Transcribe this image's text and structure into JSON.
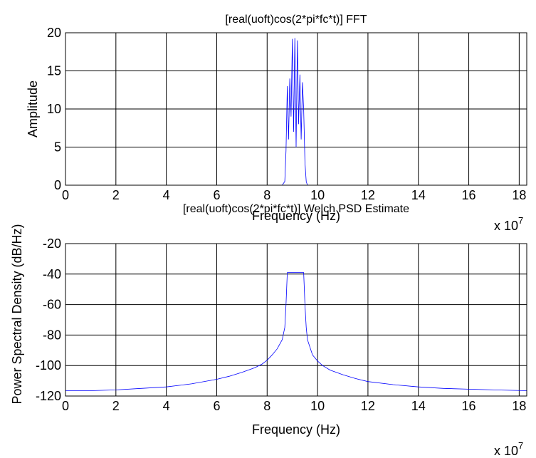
{
  "chart_data": [
    {
      "type": "line",
      "title": "[real(uoft)cos(2*pi*fc*t)] FFT",
      "xlabel": "Frequency (Hz)",
      "ylabel": "Amplitude",
      "x_exponent_label": "x 10",
      "x_exponent_power": "7",
      "xlim": [
        0,
        18.3
      ],
      "ylim": [
        0,
        20
      ],
      "xticks": [
        "0",
        "2",
        "4",
        "6",
        "8",
        "10",
        "12",
        "14",
        "16",
        "18"
      ],
      "yticks": [
        "0",
        "5",
        "10",
        "15",
        "20"
      ],
      "grid": true,
      "series_color": "#0000ff",
      "x": [
        0,
        8.6,
        8.7,
        8.75,
        8.8,
        8.85,
        8.9,
        8.95,
        9.0,
        9.05,
        9.1,
        9.15,
        9.2,
        9.25,
        9.3,
        9.35,
        9.4,
        9.45,
        9.5,
        9.55,
        9.6,
        18.3
      ],
      "values": [
        0,
        0,
        0.5,
        4.5,
        13,
        6,
        14,
        9,
        19.2,
        7,
        19.3,
        5,
        19,
        8,
        14.5,
        6,
        13.5,
        10,
        3,
        0.5,
        0,
        0
      ]
    },
    {
      "type": "line",
      "title": "[real(uoft)cos(2*pi*fc*t)] Welch PSD Estimate",
      "xlabel": "Frequency (Hz)",
      "ylabel": "Power Spectral Density (dB/Hz)",
      "x_exponent_label": "x 10",
      "x_exponent_power": "7",
      "xlim": [
        0,
        18.3
      ],
      "ylim": [
        -120,
        -20
      ],
      "xticks": [
        "0",
        "2",
        "4",
        "6",
        "8",
        "10",
        "12",
        "14",
        "16",
        "18"
      ],
      "yticks": [
        "-120",
        "-100",
        "-80",
        "-60",
        "-40",
        "-20"
      ],
      "grid": true,
      "series_color": "#0000ff",
      "x": [
        0,
        1,
        2,
        3,
        4,
        5,
        6,
        6.5,
        7,
        7.5,
        7.8,
        8.0,
        8.2,
        8.4,
        8.6,
        8.7,
        8.75,
        8.8,
        9.45,
        9.5,
        9.55,
        9.6,
        9.8,
        10.0,
        10.2,
        10.5,
        11,
        11.5,
        12,
        13,
        14,
        15,
        16,
        17,
        18.3
      ],
      "values": [
        -116.5,
        -116.5,
        -116,
        -115,
        -114,
        -112,
        -109,
        -107,
        -104.5,
        -101.5,
        -99,
        -96.5,
        -93,
        -89,
        -83,
        -75,
        -60,
        -39,
        -39,
        -60,
        -75,
        -83,
        -93,
        -97,
        -100,
        -103,
        -106,
        -108.5,
        -110.5,
        -112.5,
        -114,
        -115,
        -115.5,
        -116,
        -116.5
      ]
    }
  ]
}
